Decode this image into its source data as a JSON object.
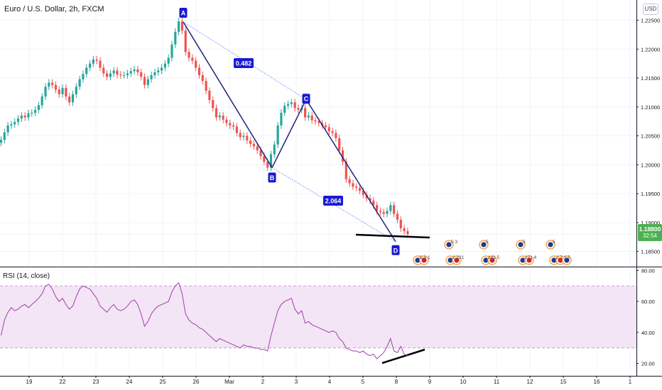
{
  "symbol_title": "Euro / U.S. Dollar, 2h, FXCM",
  "currency": "USD",
  "last_price": {
    "value": "1.18800",
    "countdown": "32:54",
    "price": 1.188
  },
  "colors": {
    "up": "#26a69a",
    "down": "#ef5350",
    "pattern": "#1a237e",
    "point_label_bg": "#1919d2",
    "rsi_line": "#a33cb0",
    "rsi_band": "#f3e5f5",
    "last_price_bg": "#4caf50",
    "grid": "#f0f3fa",
    "axis_text": "#131722"
  },
  "chart_data": [
    {
      "type": "candlestick",
      "title": "Euro / U.S. Dollar, 2h, FXCM",
      "ylim": [
        1.1825,
        1.2285
      ],
      "y_ticks": [
        1.185,
        1.19,
        1.195,
        1.2,
        1.205,
        1.21,
        1.215,
        1.22,
        1.225
      ],
      "y_tick_labels": [
        "1.18500",
        "1.19000",
        "1.19500",
        "1.20000",
        "1.20500",
        "1.21000",
        "1.21500",
        "1.22000",
        "1.22500"
      ],
      "x_tick_labels": [
        "19",
        "22",
        "23",
        "24",
        "25",
        "26",
        "Mar",
        "2",
        "3",
        "4",
        "5",
        "8",
        "9",
        "10",
        "11",
        "12",
        "15",
        "16",
        "1"
      ],
      "x_tick_days": [
        -1,
        0,
        1,
        2,
        3,
        4,
        5,
        6,
        7,
        8,
        9,
        10,
        11,
        12,
        13,
        14,
        15,
        16,
        17
      ],
      "close_series": [
        1.2043,
        1.2056,
        1.2068,
        1.207,
        1.2074,
        1.208,
        1.2085,
        1.2082,
        1.2089,
        1.209,
        1.2095,
        1.2103,
        1.2118,
        1.2135,
        1.2142,
        1.2138,
        1.213,
        1.2122,
        1.2133,
        1.2118,
        1.2108,
        1.2122,
        1.2135,
        1.2148,
        1.2157,
        1.2168,
        1.2175,
        1.2182,
        1.218,
        1.2168,
        1.2158,
        1.2152,
        1.2158,
        1.2163,
        1.2156,
        1.2155,
        1.2155,
        1.2158,
        1.2162,
        1.2165,
        1.216,
        1.2152,
        1.2138,
        1.2148,
        1.2155,
        1.216,
        1.2163,
        1.2168,
        1.2175,
        1.2185,
        1.2208,
        1.223,
        1.2248,
        1.2232,
        1.2195,
        1.2185,
        1.218,
        1.2168,
        1.2155,
        1.2145,
        1.2128,
        1.2112,
        1.2098,
        1.2082,
        1.2085,
        1.2078,
        1.2072,
        1.2068,
        1.2066,
        1.2055,
        1.2048,
        1.205,
        1.2042,
        1.2036,
        1.2032,
        1.2025,
        1.2015,
        1.2005,
        1.1995,
        1.2018,
        1.2035,
        1.2068,
        1.209,
        1.2102,
        1.2105,
        1.2108,
        1.2098,
        1.2095,
        1.2098,
        1.2082,
        1.2085,
        1.2077,
        1.2075,
        1.2072,
        1.2068,
        1.2065,
        1.2058,
        1.2055,
        1.2046,
        1.2025,
        1.2005,
        1.1975,
        1.1968,
        1.1962,
        1.196,
        1.1955,
        1.1948,
        1.1942,
        1.1938,
        1.193,
        1.192,
        1.1918,
        1.1915,
        1.192,
        1.193,
        1.1915,
        1.1905,
        1.189,
        1.1885,
        1.188
      ],
      "series": [
        {
          "name": "RSI (14, close)",
          "ylim": [
            12,
            82
          ],
          "bands": [
            30,
            70
          ],
          "y_ticks": [
            20,
            40,
            60,
            80
          ],
          "y_tick_labels": [
            "20.00",
            "40.00",
            "60.00",
            "80.00"
          ],
          "values": [
            38,
            48,
            53,
            56,
            54,
            55,
            57,
            58,
            56,
            58,
            60,
            62,
            65,
            70,
            71,
            68,
            63,
            60,
            62,
            58,
            55,
            57,
            63,
            68,
            70,
            69,
            68,
            65,
            62,
            57,
            55,
            53,
            56,
            58,
            55,
            54,
            55,
            57,
            60,
            61,
            58,
            52,
            44,
            47,
            52,
            55,
            57,
            58,
            59,
            60,
            66,
            70,
            72,
            65,
            52,
            48,
            46,
            45,
            43,
            42,
            40,
            38,
            36,
            34,
            36,
            35,
            34,
            33,
            32,
            31,
            30,
            32,
            31,
            31,
            30,
            30,
            29,
            29,
            28,
            38,
            46,
            54,
            58,
            60,
            61,
            62,
            55,
            52,
            54,
            46,
            47,
            45,
            44,
            43,
            42,
            41,
            40,
            41,
            40,
            36,
            34,
            30,
            29,
            28,
            28,
            27,
            28,
            26,
            25,
            26,
            23,
            25,
            27,
            31,
            36,
            28,
            27,
            31,
            26,
            25
          ]
        }
      ],
      "annotations": [
        {
          "label": "A",
          "price": 1.2247
        },
        {
          "label": "B",
          "price": 1.1995
        },
        {
          "label": "C",
          "price": 1.2113
        },
        {
          "label": "D",
          "price": 1.1867
        },
        {
          "label": "0.482",
          "type": "ratio"
        },
        {
          "label": "2.064",
          "type": "ratio"
        }
      ],
      "divergence_lines": [
        "price-support",
        "rsi-rising"
      ],
      "event_markers": [
        {
          "icons": 2,
          "count": "5 3 1"
        },
        {
          "icons": 1,
          "count": "5 3"
        },
        {
          "icons": 2,
          "count": "2 221"
        },
        {
          "icons": 1,
          "count": "5"
        },
        {
          "icons": 2,
          "count": "141 5"
        },
        {
          "icons": 1,
          "count": "5"
        },
        {
          "icons": 2,
          "count": "271 4"
        },
        {
          "icons": 1,
          "count": "5"
        },
        {
          "icons": 3,
          "count": "2 7 1 5"
        }
      ]
    }
  ]
}
